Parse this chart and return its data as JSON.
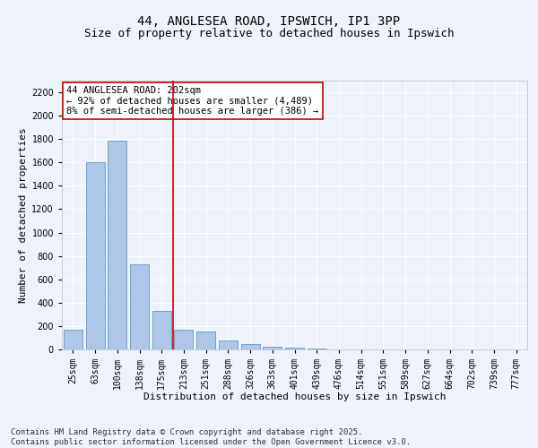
{
  "title": "44, ANGLESEA ROAD, IPSWICH, IP1 3PP",
  "subtitle": "Size of property relative to detached houses in Ipswich",
  "xlabel": "Distribution of detached houses by size in Ipswich",
  "ylabel": "Number of detached properties",
  "categories": [
    "25sqm",
    "63sqm",
    "100sqm",
    "138sqm",
    "175sqm",
    "213sqm",
    "251sqm",
    "288sqm",
    "326sqm",
    "363sqm",
    "401sqm",
    "439sqm",
    "476sqm",
    "514sqm",
    "551sqm",
    "589sqm",
    "627sqm",
    "664sqm",
    "702sqm",
    "739sqm",
    "777sqm"
  ],
  "values": [
    165,
    1600,
    1790,
    730,
    330,
    165,
    155,
    80,
    45,
    25,
    15,
    5,
    0,
    0,
    0,
    0,
    0,
    0,
    0,
    0,
    0
  ],
  "bar_color": "#aec6e8",
  "bar_edge_color": "#5b9bd5",
  "vline_x": 4.5,
  "vline_color": "#cc0000",
  "annotation_text": "44 ANGLESEA ROAD: 202sqm\n← 92% of detached houses are smaller (4,489)\n8% of semi-detached houses are larger (386) →",
  "annotation_box_color": "#cc0000",
  "ylim": [
    0,
    2300
  ],
  "yticks": [
    0,
    200,
    400,
    600,
    800,
    1000,
    1200,
    1400,
    1600,
    1800,
    2000,
    2200
  ],
  "bg_color": "#eef2fb",
  "grid_color": "#ffffff",
  "footer_line1": "Contains HM Land Registry data © Crown copyright and database right 2025.",
  "footer_line2": "Contains public sector information licensed under the Open Government Licence v3.0.",
  "title_fontsize": 10,
  "subtitle_fontsize": 9,
  "axis_label_fontsize": 8,
  "tick_fontsize": 7,
  "annotation_fontsize": 7.5,
  "footer_fontsize": 6.5
}
